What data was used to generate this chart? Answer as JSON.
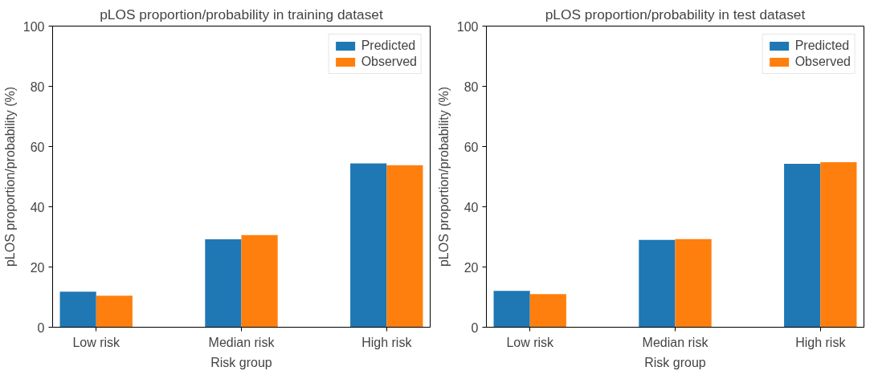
{
  "chart_data": [
    {
      "type": "bar",
      "title": "pLOS proportion/probability in training dataset",
      "xlabel": "Risk group",
      "ylabel": "pLOS proportion/probability (%)",
      "categories": [
        "Low risk",
        "Median risk",
        "High risk"
      ],
      "series": [
        {
          "name": "Predicted",
          "color": "#1f77b4",
          "values": [
            11.8,
            29.2,
            54.4
          ]
        },
        {
          "name": "Observed",
          "color": "#ff7f0e",
          "values": [
            10.5,
            30.6,
            53.8
          ]
        }
      ],
      "ylim": [
        0,
        100
      ],
      "yticks": [
        0,
        20,
        40,
        60,
        80,
        100
      ],
      "legend": "top right",
      "grid": false
    },
    {
      "type": "bar",
      "title": "pLOS proportion/probability in test dataset",
      "xlabel": "Risk group",
      "ylabel": "pLOS proportion/probability (%)",
      "categories": [
        "Low risk",
        "Median risk",
        "High risk"
      ],
      "series": [
        {
          "name": "Predicted",
          "color": "#1f77b4",
          "values": [
            12.1,
            29.0,
            54.3
          ]
        },
        {
          "name": "Observed",
          "color": "#ff7f0e",
          "values": [
            11.0,
            29.3,
            54.8
          ]
        }
      ],
      "ylim": [
        0,
        100
      ],
      "yticks": [
        0,
        20,
        40,
        60,
        80,
        100
      ],
      "legend": "top right",
      "grid": false
    }
  ]
}
